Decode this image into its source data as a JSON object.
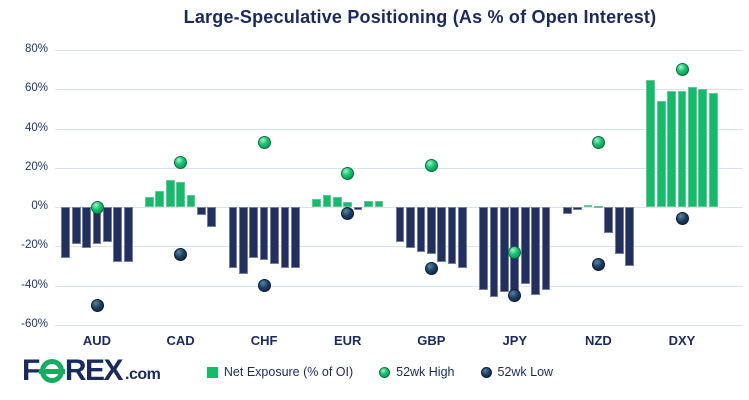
{
  "title": "Large-Speculative Positioning (As % of Open Interest)",
  "colors": {
    "bar_positive": "#10be68",
    "bar_negative": "#22305f",
    "high_dot_green": "#10be68",
    "low_dot_navy": "#16355a",
    "text_navy": "#1b2a5e",
    "gridline": "#dae3e9",
    "logo_green": "#0fae61"
  },
  "legend": {
    "items": [
      {
        "label": "Net Exposure (% of OI)",
        "marker": "green-square"
      },
      {
        "label": "52wk High",
        "marker": "green-dot"
      },
      {
        "label": "52wk Low",
        "marker": "navy-dot"
      }
    ]
  },
  "logo": {
    "f": "F",
    "rex": "REX",
    "suffix": ".com"
  },
  "chart_data": {
    "type": "bar",
    "title": "Large-Speculative Positioning (As % of Open Interest)",
    "categories": [
      "AUD",
      "CAD",
      "CHF",
      "EUR",
      "GBP",
      "JPY",
      "NZD",
      "DXY"
    ],
    "bar_series_name": "Net Exposure (% of OI)",
    "bars_per_category": [
      [
        -26,
        -19,
        -21,
        -19,
        -18,
        -28,
        -28
      ],
      [
        5,
        8,
        14,
        13,
        6,
        -4,
        -10
      ],
      [
        -31,
        -34,
        -26,
        -27,
        -29,
        -31,
        -31
      ],
      [
        4,
        6,
        5,
        2.5,
        -1.5,
        3,
        3
      ],
      [
        -18,
        -21,
        -23,
        -24,
        -28,
        -29,
        -31
      ],
      [
        -42,
        -46,
        -43,
        -44,
        -39,
        -45,
        -42
      ],
      [
        -3.5,
        -1.5,
        1,
        0.5,
        -13,
        -24,
        -30
      ],
      [
        65,
        54,
        59,
        59,
        61,
        60,
        58
      ]
    ],
    "high_series": {
      "name": "52wk High",
      "values": [
        0,
        23,
        33,
        17,
        21,
        -23,
        33,
        70
      ]
    },
    "low_series": {
      "name": "52wk Low",
      "values": [
        -50,
        -24,
        -40,
        -3,
        -31,
        -45,
        -29,
        -6
      ]
    },
    "ylim": [
      -60,
      80
    ],
    "yticks": [
      80,
      60,
      40,
      20,
      0,
      -20,
      -40,
      -60
    ],
    "ytick_labels": [
      "80%",
      "60%",
      "40%",
      "20%",
      "0%",
      "-20%",
      "-40%",
      "-60%"
    ],
    "grid": true,
    "legend_position": "bottom",
    "bar_color_rule": "green if positive, navy if negative"
  }
}
